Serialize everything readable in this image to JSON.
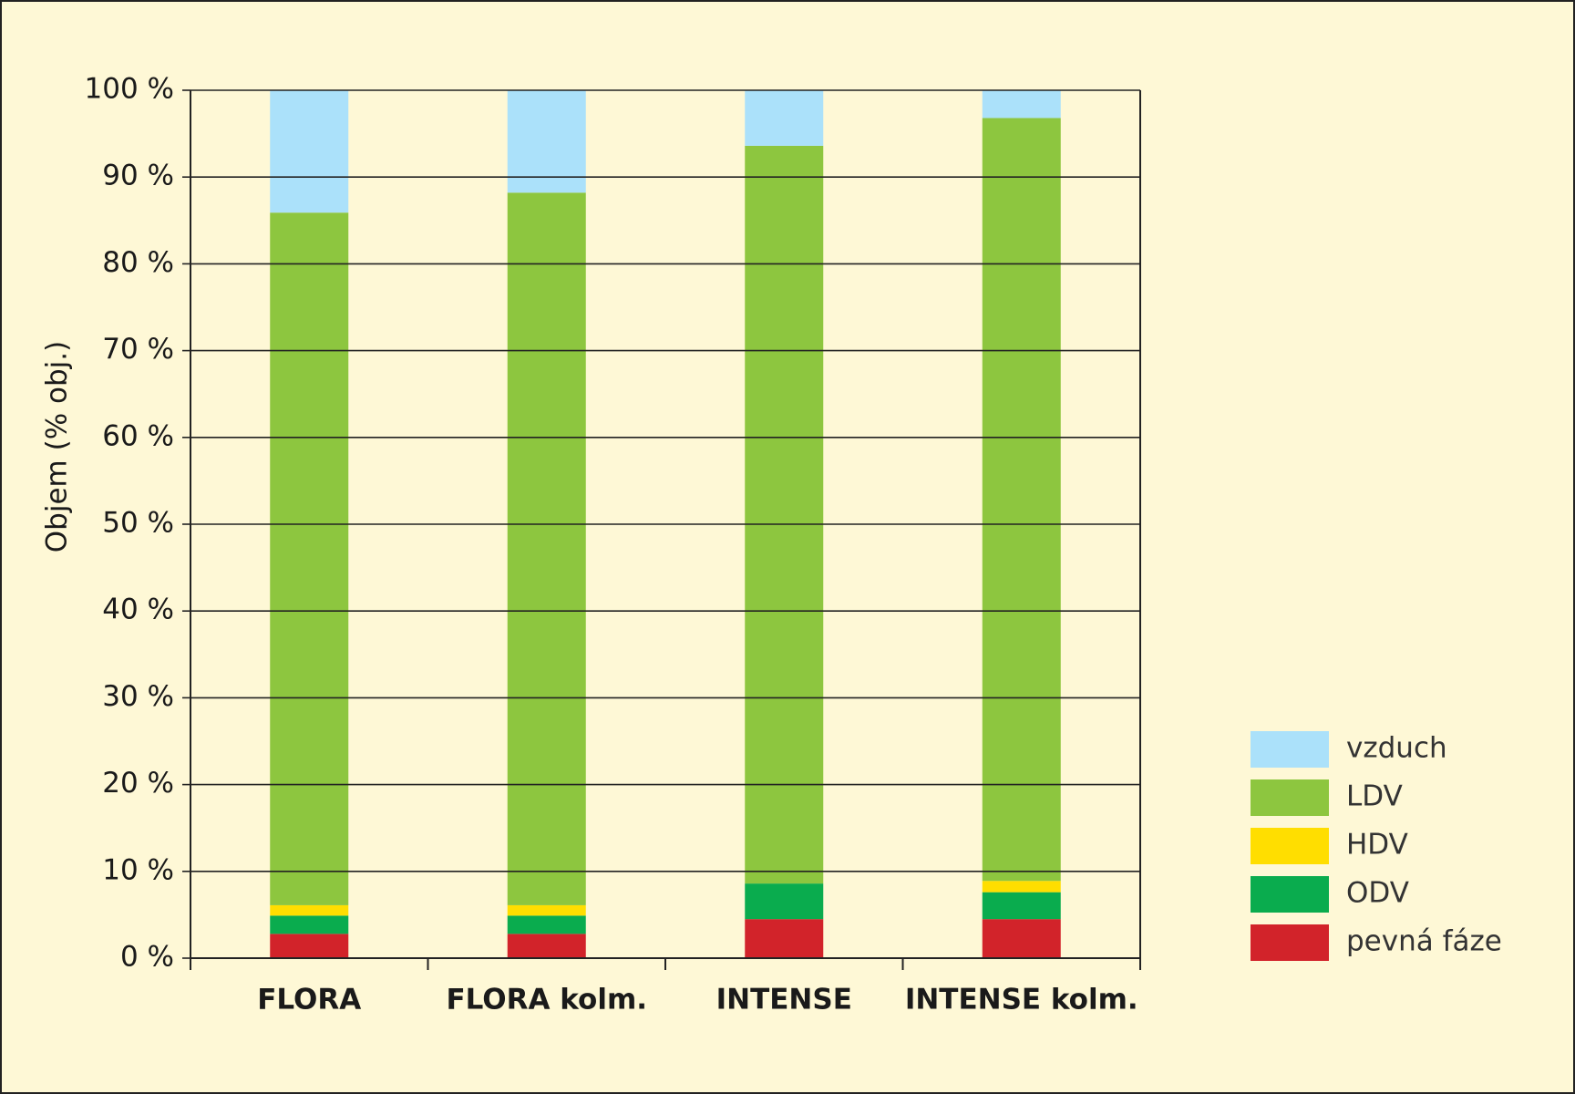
{
  "chart_data": {
    "type": "stacked_bar",
    "y_label": "Objem (% obj.)",
    "categories": [
      "FLORA",
      "FLORA kolm.",
      "INTENSE",
      "INTENSE kolm."
    ],
    "series": [
      {
        "name": "pevná fáze",
        "color": "#d2232a",
        "values": [
          2.8,
          2.8,
          4.5,
          4.5
        ]
      },
      {
        "name": "ODV",
        "color": "#0aac4e",
        "values": [
          2.1,
          2.1,
          4.1,
          3.1
        ]
      },
      {
        "name": "HDV",
        "color": "#ffde00",
        "values": [
          1.2,
          1.2,
          0,
          1.3
        ]
      },
      {
        "name": "LDV",
        "color": "#8dc63f",
        "values": [
          79.8,
          82.1,
          85.0,
          87.9
        ]
      },
      {
        "name": "vzduch",
        "color": "#abe1fa",
        "values": [
          14.1,
          11.8,
          6.4,
          3.2
        ]
      }
    ],
    "ylim": [
      0,
      100
    ],
    "yticks": [
      {
        "value": 0,
        "label": "0 %"
      },
      {
        "value": 10,
        "label": "10 %"
      },
      {
        "value": 20,
        "label": "20 %"
      },
      {
        "value": 30,
        "label": "30 %"
      },
      {
        "value": 40,
        "label": "40 %"
      },
      {
        "value": 50,
        "label": "50 %"
      },
      {
        "value": 60,
        "label": "60 %"
      },
      {
        "value": 70,
        "label": "70 %"
      },
      {
        "value": 80,
        "label": "80 %"
      },
      {
        "value": 90,
        "label": "90 %"
      },
      {
        "value": 100,
        "label": "100 %"
      }
    ],
    "grid": true
  }
}
